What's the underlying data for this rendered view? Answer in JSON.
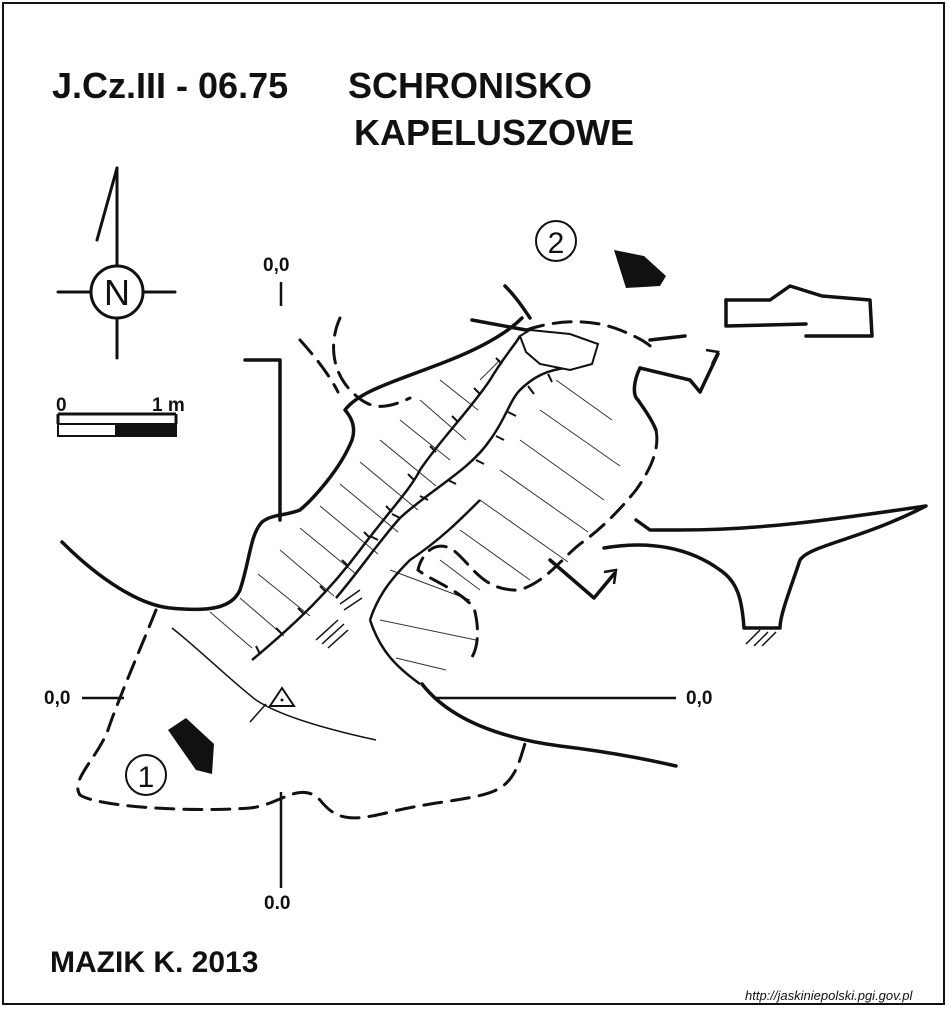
{
  "title": {
    "code": "J.Cz.III - 06.75",
    "name_line1": "SCHRONISKO",
    "name_line2": "KAPELUSZOWE"
  },
  "north_arrow": {
    "letter": "N",
    "icon": "north-arrow-icon"
  },
  "scale_bar": {
    "start_label": "0",
    "end_label": "1 m"
  },
  "reference_marks": {
    "top": "0,0",
    "left": "0,0",
    "right": "0,0",
    "bottom": "0.0"
  },
  "entrances": [
    {
      "number": "1",
      "icon": "entrance-arrow-icon"
    },
    {
      "number": "2",
      "icon": "entrance-arrow-icon"
    }
  ],
  "author": "MAZIK K. 2013",
  "source_url": "http://jaskiniepolski.pgi.gov.pl"
}
